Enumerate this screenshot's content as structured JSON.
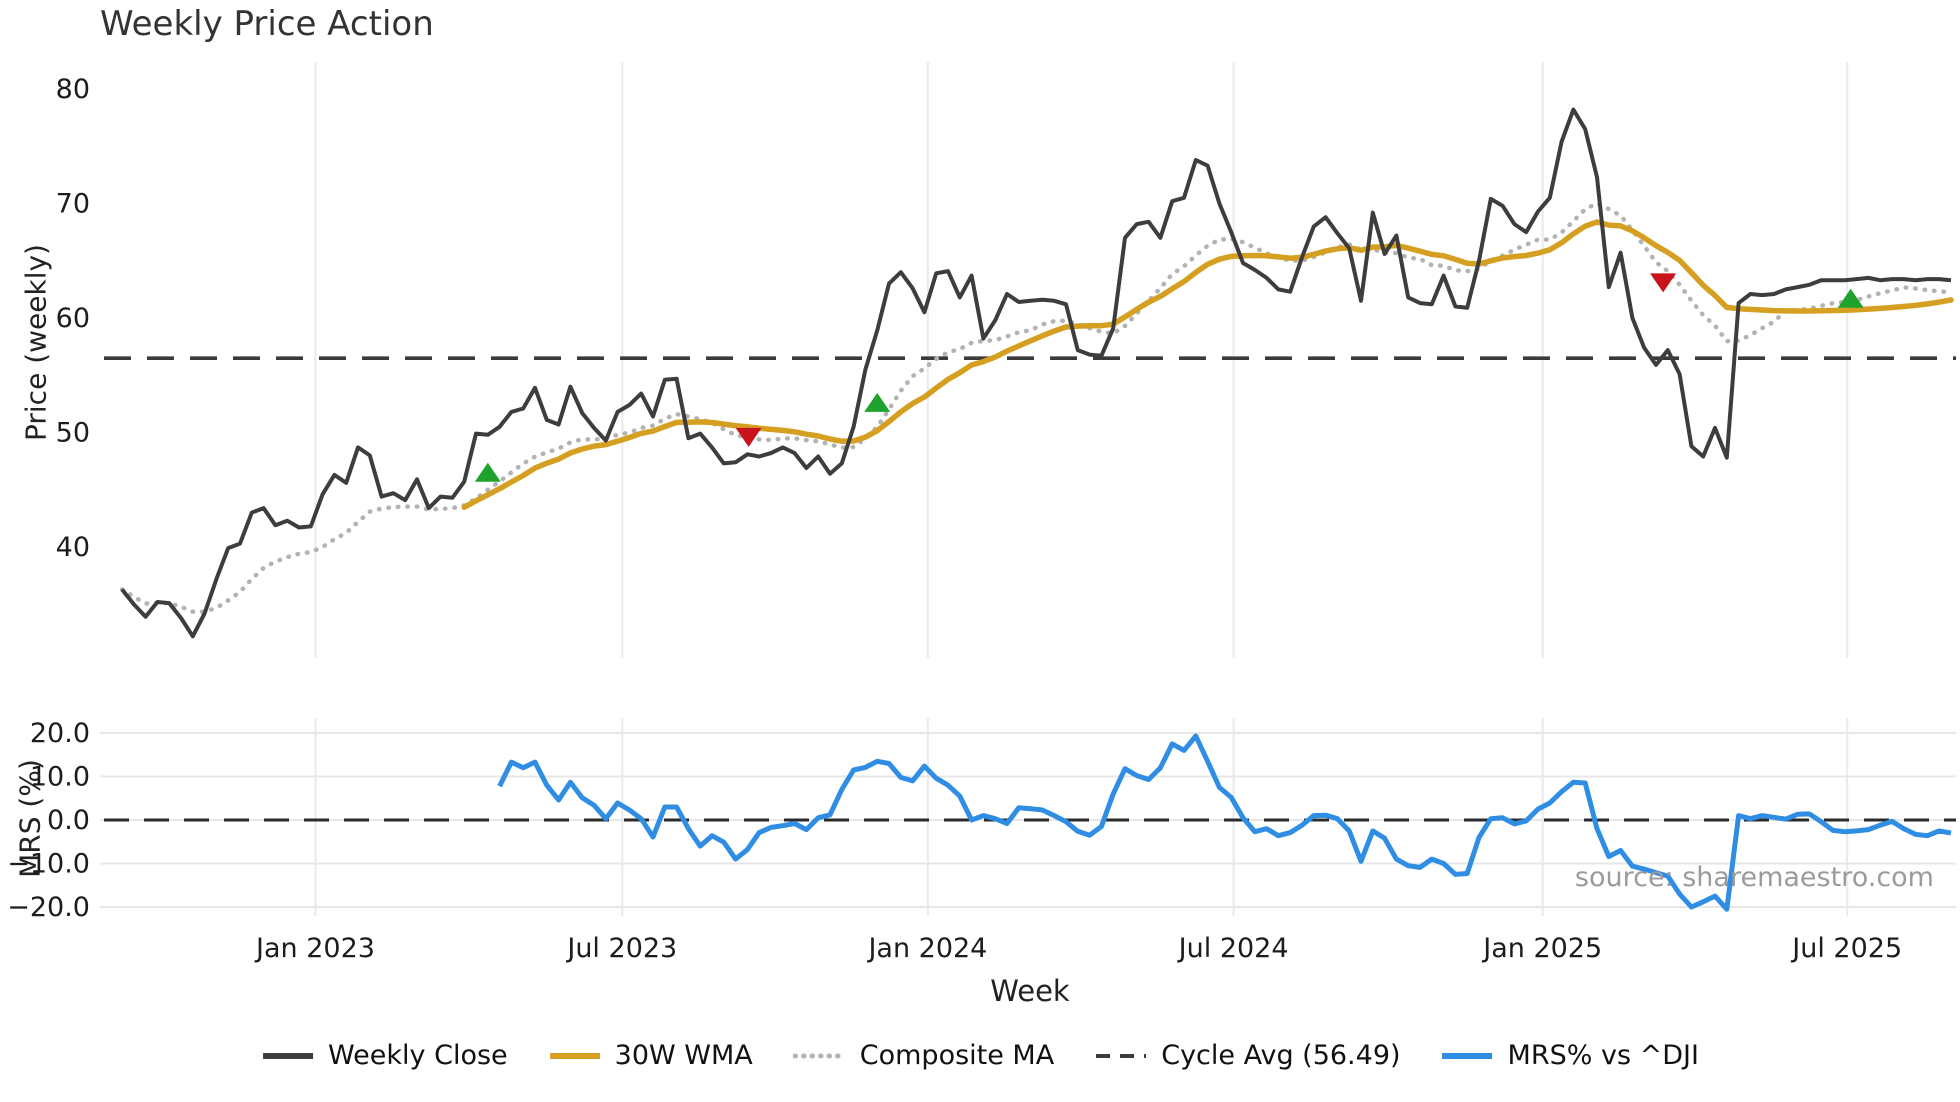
{
  "title": "Weekly Price Action",
  "source": "source: sharemaestro.com",
  "colors": {
    "close": "#3d3d3d",
    "wma": "#d5a021",
    "composite": "#b3b3b3",
    "cycle": "#3a3a3a",
    "mrs": "#2f8ee4",
    "green_marker": "#1fa32c",
    "red_marker": "#c9121a"
  },
  "x_axis": {
    "label": "Week",
    "n_weeks": 156,
    "ticks": [
      {
        "week": 16.4,
        "label": "Jan 2023"
      },
      {
        "week": 42.4,
        "label": "Jul 2023"
      },
      {
        "week": 68.3,
        "label": "Jan 2024"
      },
      {
        "week": 94.2,
        "label": "Jul 2024"
      },
      {
        "week": 120.4,
        "label": "Jan 2025"
      },
      {
        "week": 146.2,
        "label": "Jul 2025"
      }
    ]
  },
  "chart_data": [
    {
      "type": "line",
      "panel": "price",
      "title": "Weekly Price Action",
      "ylabel": "Price (weekly)",
      "ylim": [
        30,
        82.5
      ],
      "yticks": [
        40,
        50,
        60,
        70,
        80
      ],
      "grid": "vertical-only",
      "cycle_avg": 56.49,
      "series": [
        {
          "name": "Weekly Close",
          "color": "#3d3d3d",
          "style": "solid",
          "start_week": 0,
          "values": [
            36.3,
            35.0,
            33.9,
            35.2,
            35.1,
            33.8,
            32.2,
            34.2,
            37.2,
            39.9,
            40.3,
            43.0,
            43.4,
            41.9,
            42.3,
            41.7,
            41.8,
            44.6,
            46.3,
            45.6,
            48.7,
            48.0,
            44.4,
            44.7,
            44.1,
            45.9,
            43.4,
            44.4,
            44.3,
            45.7,
            49.9,
            49.8,
            50.5,
            51.8,
            52.1,
            53.9,
            51.1,
            50.7,
            54.0,
            51.7,
            50.4,
            49.3,
            51.8,
            52.4,
            53.4,
            51.4,
            54.6,
            54.7,
            49.5,
            49.9,
            48.7,
            47.3,
            47.4,
            48.1,
            47.9,
            48.2,
            48.7,
            48.2,
            46.9,
            47.9,
            46.4,
            47.3,
            50.5,
            55.5,
            58.9,
            63.0,
            64.0,
            62.6,
            60.5,
            63.9,
            64.1,
            61.8,
            63.7,
            58.2,
            59.8,
            62.1,
            61.4,
            61.5,
            61.6,
            61.5,
            61.2,
            57.2,
            56.8,
            56.7,
            59.1,
            67.0,
            68.2,
            68.4,
            67.0,
            70.2,
            70.5,
            73.8,
            73.3,
            70.0,
            67.5,
            64.8,
            64.2,
            63.5,
            62.5,
            62.3,
            65.3,
            68.0,
            68.8,
            67.4,
            66.1,
            61.5,
            69.2,
            65.6,
            67.2,
            61.8,
            61.3,
            61.2,
            63.7,
            61.0,
            60.9,
            65.0,
            70.4,
            69.8,
            68.2,
            67.5,
            69.3,
            70.5,
            75.4,
            78.2,
            76.5,
            72.3,
            62.7,
            65.7,
            60.0,
            57.4,
            55.9,
            57.2,
            55.1,
            48.8,
            47.9,
            50.4,
            47.8,
            61.3,
            62.1,
            62.0,
            62.1,
            62.5,
            62.7,
            62.9,
            63.3,
            63.3,
            63.3,
            63.4,
            63.5,
            63.3,
            63.4,
            63.4,
            63.3,
            63.4,
            63.4,
            63.3
          ]
        },
        {
          "name": "30W WMA",
          "color": "#d5a021",
          "style": "solid",
          "start_week": 29,
          "derived_from": "Weekly Close",
          "method": "30-week linearly-weighted moving average"
        },
        {
          "name": "Composite MA",
          "color": "#b3b3b3",
          "style": "dotted",
          "start_week": 0,
          "derived_from": "Weekly Close",
          "method": "average of 5/15/30-week simple moving averages"
        },
        {
          "name": "Cycle Avg (56.49)",
          "color": "#3a3a3a",
          "style": "dashed",
          "value": 56.49
        }
      ],
      "markers": {
        "green_up": [
          {
            "week": 31.0,
            "value": 46.4
          },
          {
            "week": 64.0,
            "value": 52.5
          },
          {
            "week": 146.5,
            "value": 61.6
          }
        ],
        "red_down": [
          {
            "week": 53.1,
            "value": 49.7
          },
          {
            "week": 130.6,
            "value": 63.2
          }
        ]
      }
    },
    {
      "type": "line",
      "panel": "mrs",
      "ylabel": "MRS (%)",
      "ylim": [
        -22.5,
        22.5
      ],
      "yticks": [
        -20,
        -10,
        0,
        10,
        20
      ],
      "ytick_labels": [
        "−20.0",
        "−10.0",
        "0.0",
        "10.0",
        "20.0"
      ],
      "grid": "both",
      "zero_line": 0,
      "series": [
        {
          "name": "MRS% vs ^DJI",
          "color": "#2f8ee4",
          "style": "solid",
          "start_week": 32,
          "values": [
            7.8,
            13.3,
            12.0,
            13.3,
            8.0,
            4.6,
            8.7,
            5.1,
            3.4,
            0.3,
            3.9,
            2.3,
            0.3,
            -3.9,
            3.0,
            3.0,
            -2.0,
            -6.0,
            -3.6,
            -5.1,
            -9.0,
            -6.8,
            -2.9,
            -1.7,
            -1.3,
            -0.8,
            -2.2,
            0.5,
            1.2,
            7.0,
            11.5,
            12.1,
            13.5,
            13.0,
            9.8,
            9.0,
            12.4,
            9.6,
            8.0,
            5.5,
            0.0,
            1.0,
            0.3,
            -0.8,
            2.8,
            2.6,
            2.3,
            1.0,
            -0.4,
            -2.6,
            -3.5,
            -1.5,
            6.0,
            11.8,
            10.2,
            9.3,
            12.0,
            17.5,
            16.0,
            19.3,
            13.5,
            7.5,
            5.2,
            0.5,
            -2.7,
            -2.0,
            -3.6,
            -2.9,
            -1.2,
            1.0,
            1.1,
            0.3,
            -2.5,
            -9.5,
            -2.5,
            -4.2,
            -9.0,
            -10.5,
            -10.9,
            -9.0,
            -10.0,
            -12.5,
            -12.3,
            -4.0,
            0.3,
            0.5,
            -0.9,
            -0.2,
            2.5,
            3.9,
            6.5,
            8.7,
            8.5,
            -2.0,
            -8.4,
            -7.0,
            -10.6,
            -11.3,
            -12.1,
            -12.9,
            -17.0,
            -20.0,
            -18.8,
            -17.5,
            -20.5,
            1.0,
            0.3,
            1.0,
            0.6,
            0.2,
            1.3,
            1.4,
            -0.4,
            -2.4,
            -2.7,
            -2.5,
            -2.2,
            -1.2,
            -0.3,
            -2.0,
            -3.3,
            -3.6,
            -2.5,
            -3.0
          ]
        }
      ]
    }
  ],
  "legend": [
    {
      "label": "Weekly Close",
      "swatch": "solid",
      "color": "#3d3d3d"
    },
    {
      "label": "30W WMA",
      "swatch": "solid",
      "color": "#d5a021"
    },
    {
      "label": "Composite MA",
      "swatch": "dotted",
      "color": "#b3b3b3"
    },
    {
      "label": "Cycle Avg (56.49)",
      "swatch": "dashed",
      "color": "#3a3a3a"
    },
    {
      "label": "MRS% vs ^DJI",
      "swatch": "solid",
      "color": "#2f8ee4"
    }
  ]
}
